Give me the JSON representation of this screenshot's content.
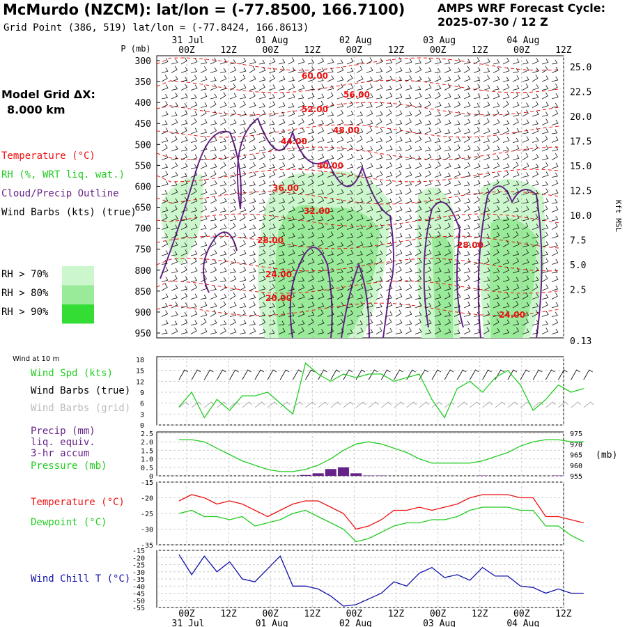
{
  "header": {
    "title": "McMurdo (NZCM):  lat/lon = (-77.8500, 166.7100)",
    "subtitle": "Grid Point (386, 519) lat/lon = (-77.8424, 166.8613)",
    "cycle_line1": "AMPS WRF Forecast Cycle:",
    "cycle_line2": "2025-07-30 / 12  Z"
  },
  "model_grid": {
    "label": "Model Grid ΔX:",
    "value": "8.000 km"
  },
  "legend_upper": {
    "temperature": "Temperature (°C)",
    "rh": "RH (%, WRT liq. wat.)",
    "cloud": "Cloud/Precip Outline",
    "wind": "Wind Barbs (kts) (true)",
    "rh_levels": [
      {
        "label": "RH > 70%",
        "color": "#ccf7cc"
      },
      {
        "label": "RH > 80%",
        "color": "#99ea99"
      },
      {
        "label": "RH > 90%",
        "color": "#33dd33"
      }
    ]
  },
  "legend_wind10": {
    "title": "Wind at 10 m",
    "speed": "Wind Spd (kts)",
    "barbs_true": "Wind Barbs (true)",
    "barbs_grid": "Wind Barbs (grid)"
  },
  "legend_precip": {
    "l1": "Precip (mm)",
    "l2": "liq. equiv.",
    "l3": "3-hr accum",
    "l4": "Pressure (mb)"
  },
  "legend_temp": {
    "temp": "Temperature (°C)",
    "dew": "Dewpoint (°C)"
  },
  "legend_chill": {
    "label": "Wind Chill T (°C)"
  },
  "colors": {
    "temperature": "#ee1111",
    "green": "#22cc22",
    "cloud": "#662288",
    "grid_barbs": "#aaaaaa",
    "precip": "#662288",
    "windchill": "#1111aa"
  },
  "chart_data": [
    {
      "type": "contour",
      "panel": "cross-section",
      "ylabel": "P (mb)",
      "y2label": "Kft MSL",
      "time_ticks": [
        "00Z",
        "12Z",
        "00Z",
        "12Z",
        "00Z",
        "12Z",
        "00Z",
        "12Z",
        "00Z",
        "12Z"
      ],
      "date_labels": [
        "31 Jul",
        "01 Aug",
        "02 Aug",
        "03 Aug",
        "04 Aug"
      ],
      "pressure_ticks": [
        300,
        350,
        400,
        450,
        500,
        550,
        600,
        650,
        700,
        750,
        800,
        850,
        900,
        950
      ],
      "height_ticks": [
        "25.0",
        "22.5",
        "20.0",
        "17.5",
        "15.0",
        "12.5",
        "10.0",
        "7.5",
        "5.0",
        "2.5",
        "0.13"
      ],
      "temperature_labels": [
        "60.00",
        "56.00",
        "52.00",
        "48.00",
        "44.00",
        "40.00",
        "36.00",
        "32.00",
        "28.00",
        "28.00",
        "24.00",
        "24.00",
        "20.00"
      ]
    },
    {
      "type": "line",
      "panel": "wind-10m",
      "title": "Wind at 10 m",
      "yticks": [
        0,
        3,
        6,
        9,
        12,
        15,
        18
      ],
      "ylim": [
        0,
        18
      ],
      "x": [
        0,
        3,
        6,
        9,
        12,
        15,
        18,
        21,
        24,
        27,
        30,
        33,
        36,
        39,
        42,
        45,
        48,
        51,
        54,
        57,
        60,
        63,
        66,
        69,
        72,
        75,
        78,
        81,
        84,
        87,
        90,
        93,
        96
      ],
      "series": [
        {
          "name": "Wind Spd (kts)",
          "values": [
            5,
            9,
            2,
            7,
            4,
            8,
            8,
            9,
            6,
            3,
            17,
            14,
            12,
            14,
            13,
            14,
            14,
            12,
            13,
            14,
            7,
            2,
            10,
            12,
            9,
            13,
            15,
            11,
            4,
            7,
            11,
            9,
            10
          ]
        }
      ]
    },
    {
      "type": "line",
      "panel": "precip-pressure",
      "yticks_left": [
        "0",
        "0.5",
        "1.0",
        "1.5",
        "2.0",
        "2.5"
      ],
      "ylim_left": [
        0,
        2.5
      ],
      "yticks_right": [
        955,
        960,
        965,
        970,
        975
      ],
      "ylim_right": [
        955,
        975
      ],
      "x": [
        0,
        3,
        6,
        9,
        12,
        15,
        18,
        21,
        24,
        27,
        30,
        33,
        36,
        39,
        42,
        45,
        48,
        51,
        54,
        57,
        60,
        63,
        66,
        69,
        72,
        75,
        78,
        81,
        84,
        87,
        90,
        93,
        96
      ],
      "series": [
        {
          "name": "Pressure (mb)",
          "values": [
            972,
            972,
            971,
            968,
            965,
            962,
            960,
            958,
            957,
            957,
            958,
            960,
            963,
            967,
            970,
            971,
            970,
            968,
            966,
            963,
            961,
            961,
            961,
            961,
            962,
            964,
            966,
            969,
            971,
            972,
            972,
            971,
            971
          ]
        },
        {
          "name": "Precip (mm)",
          "type": "bar",
          "values": [
            0,
            0,
            0,
            0,
            0,
            0,
            0,
            0,
            0,
            0,
            0.05,
            0.15,
            0.4,
            0.5,
            0.15,
            0.02,
            0.02,
            0,
            0,
            0,
            0,
            0,
            0,
            0,
            0.02,
            0,
            0,
            0,
            0,
            0,
            0.02,
            0,
            0
          ]
        }
      ]
    },
    {
      "type": "line",
      "panel": "temperature",
      "yticks": [
        -15,
        -20,
        -25,
        -30,
        -35
      ],
      "ylim": [
        -35,
        -15
      ],
      "x": [
        0,
        3,
        6,
        9,
        12,
        15,
        18,
        21,
        24,
        27,
        30,
        33,
        36,
        39,
        42,
        45,
        48,
        51,
        54,
        57,
        60,
        63,
        66,
        69,
        72,
        75,
        78,
        81,
        84,
        87,
        90,
        93,
        96
      ],
      "series": [
        {
          "name": "Temperature (°C)",
          "values": [
            -21,
            -19,
            -20,
            -22,
            -21,
            -22,
            -24,
            -26,
            -24,
            -22,
            -21,
            -21,
            -23,
            -25,
            -30,
            -29,
            -27,
            -24,
            -24,
            -23,
            -24,
            -23,
            -22,
            -20,
            -19,
            -19,
            -19,
            -20,
            -20,
            -26,
            -26,
            -27,
            -28
          ]
        },
        {
          "name": "Dewpoint (°C)",
          "values": [
            -25,
            -24,
            -26,
            -26,
            -27,
            -26,
            -29,
            -28,
            -27,
            -25,
            -24,
            -26,
            -28,
            -30,
            -34,
            -33,
            -31,
            -29,
            -28,
            -28,
            -27,
            -27,
            -26,
            -24,
            -23,
            -23,
            -23,
            -24,
            -24,
            -29,
            -29,
            -32,
            -34
          ]
        }
      ]
    },
    {
      "type": "line",
      "panel": "windchill",
      "yticks": [
        -15,
        -20,
        -25,
        -30,
        -35,
        -40,
        -45,
        -50,
        -55
      ],
      "ylim": [
        -55,
        -15
      ],
      "x": [
        0,
        3,
        6,
        9,
        12,
        15,
        18,
        21,
        24,
        27,
        30,
        33,
        36,
        39,
        42,
        45,
        48,
        51,
        54,
        57,
        60,
        63,
        66,
        69,
        72,
        75,
        78,
        81,
        84,
        87,
        90,
        93,
        96
      ],
      "series": [
        {
          "name": "Wind Chill T (°C)",
          "values": [
            -18,
            -32,
            -19,
            -30,
            -23,
            -35,
            -37,
            -28,
            -19,
            -40,
            -40,
            -42,
            -47,
            -54,
            -53,
            -49,
            -45,
            -37,
            -40,
            -31,
            -27,
            -34,
            -32,
            -36,
            -27,
            -33,
            -33,
            -40,
            -41,
            -45,
            -42,
            -45,
            -45
          ]
        }
      ]
    }
  ]
}
